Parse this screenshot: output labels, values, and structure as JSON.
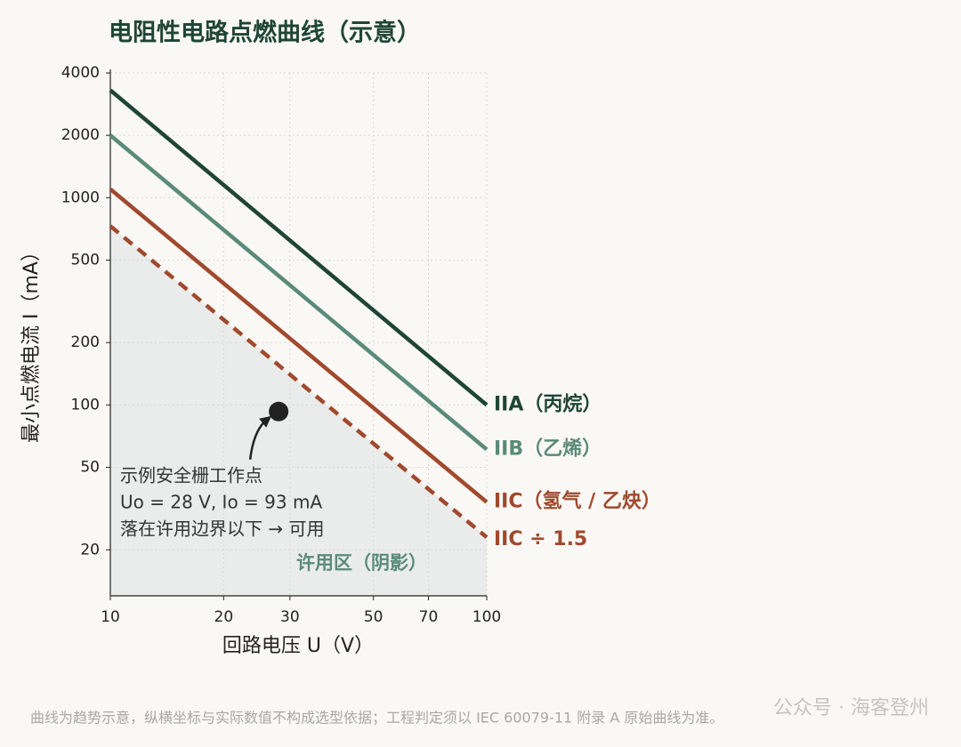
{
  "chart_data": {
    "type": "line",
    "title": "电阻性电路点燃曲线（示意）",
    "x_label": "回路电压 U（V）",
    "y_label": "最小点燃电流 I（mA）",
    "log_x": true,
    "log_y": true,
    "grid": true,
    "xlim": [
      10,
      100
    ],
    "ylim": [
      12,
      4000
    ],
    "xticks": [
      10,
      20,
      30,
      50,
      70,
      100
    ],
    "yticks": [
      20,
      50,
      100,
      200,
      500,
      1000,
      2000,
      4000
    ],
    "x": [
      10,
      100
    ],
    "series": [
      {
        "name": "IIA（丙烷）",
        "color": "#1f4535",
        "values": [
          3300,
          100
        ]
      },
      {
        "name": "IIB（乙烯）",
        "color": "#5a8a7a",
        "values": [
          2000,
          61
        ]
      },
      {
        "name": "IIC（氢气 / 乙炔）",
        "color": "#a0492e",
        "values": [
          1100,
          34
        ]
      },
      {
        "name": "IIC ÷ 1.5",
        "color": "#a0492e",
        "values": [
          730,
          23
        ],
        "dashed": true,
        "fill_below": "#e9ecea"
      }
    ],
    "marker": {
      "x": 28,
      "y": 93,
      "color": "#222"
    },
    "annotation": [
      "示例安全栅工作点",
      "Uo = 28 V, Io = 93 mA",
      "落在许用边界以下 → 可用"
    ],
    "region_label": "许用区（阴影）",
    "note": "曲线为趋势示意，纵横坐标与实际数值不构成选型依据；工程判定须以 IEC 60079-11 附录 A 原始曲线为准。",
    "watermark": "公众号 · 海客登州"
  }
}
